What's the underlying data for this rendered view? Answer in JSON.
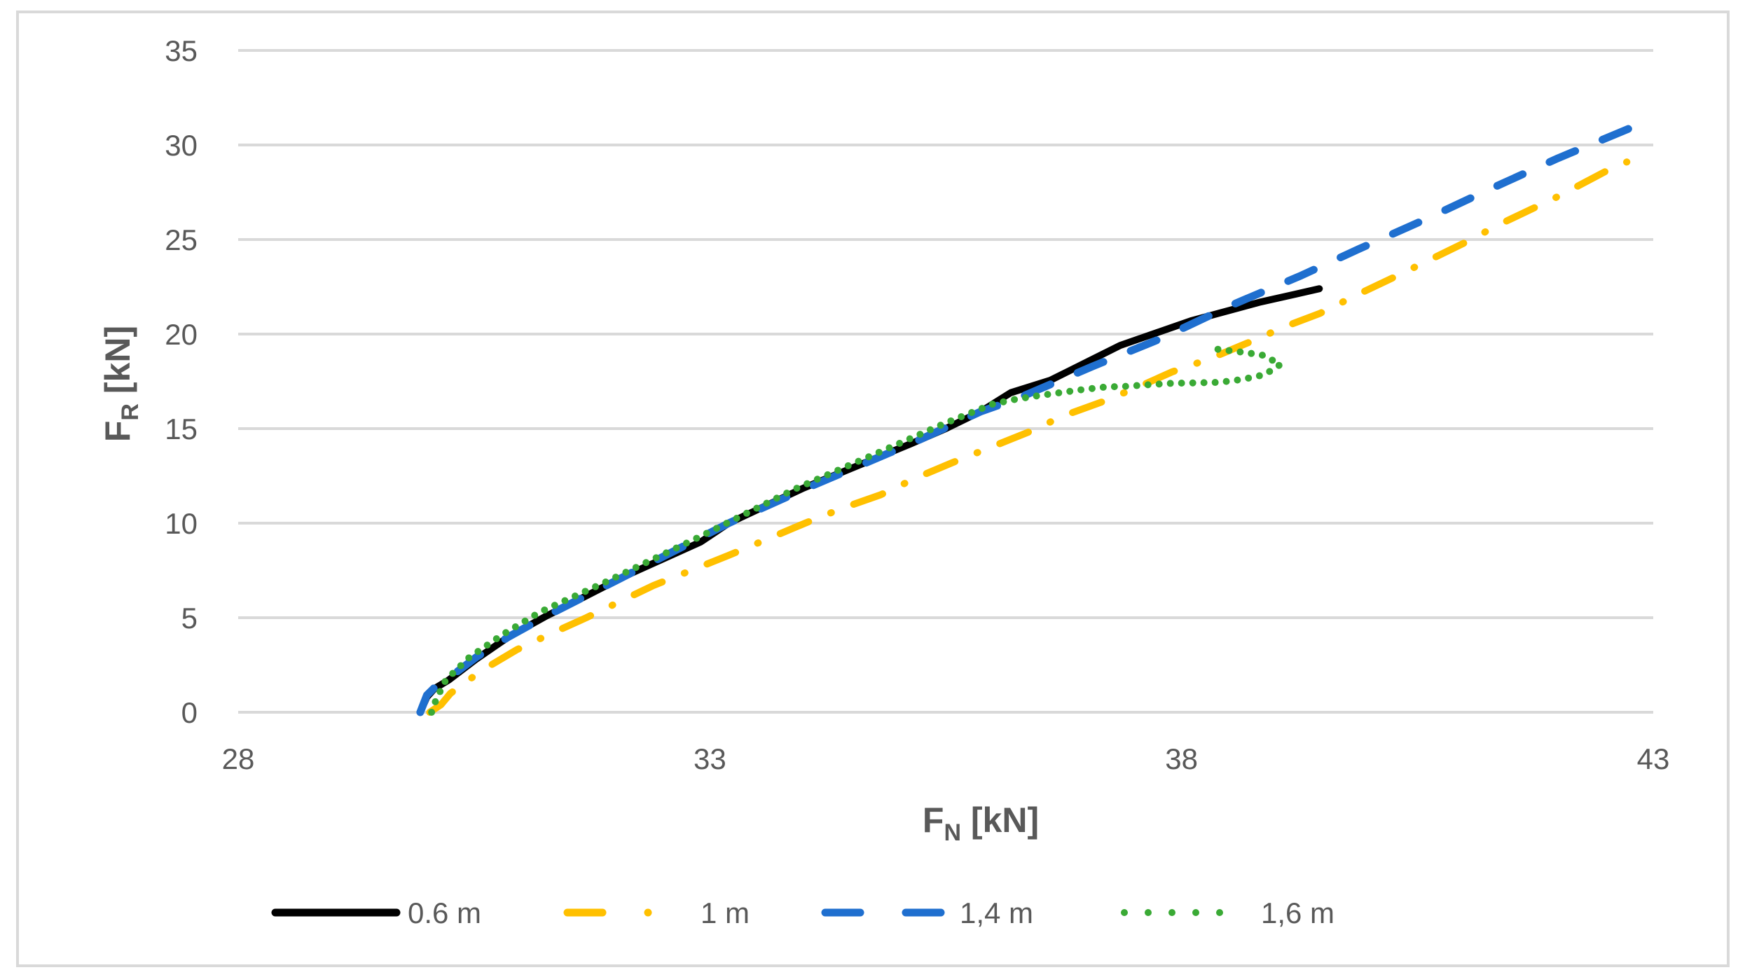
{
  "chart_data": {
    "type": "line",
    "title": "",
    "xlabel": "F_N [kN]",
    "xlabel_main": "F",
    "xlabel_sub": "N",
    "xlabel_unit": " [kN]",
    "ylabel": "F_R [kN]",
    "ylabel_main": "F",
    "ylabel_sub": "R",
    "ylabel_unit": " [kN]",
    "xlim": [
      28,
      43
    ],
    "ylim": [
      0,
      35
    ],
    "x_ticks": [
      28,
      33,
      38,
      43
    ],
    "y_ticks": [
      0,
      5,
      10,
      15,
      20,
      25,
      30,
      35
    ],
    "grid": {
      "horizontal": true,
      "vertical": false,
      "color": "#d9d9d9"
    },
    "legend_position": "bottom",
    "series": [
      {
        "name": "0.6 m",
        "color": "#000000",
        "style": "solid",
        "points": [
          [
            29.93,
            0
          ],
          [
            30.0,
            0.8
          ],
          [
            30.08,
            1.25
          ],
          [
            30.23,
            1.7
          ],
          [
            30.52,
            2.8
          ],
          [
            30.87,
            4.0
          ],
          [
            31.27,
            5.1
          ],
          [
            31.51,
            5.7
          ],
          [
            32.1,
            7.2
          ],
          [
            32.9,
            9.0
          ],
          [
            33.2,
            10.0
          ],
          [
            33.99,
            11.85
          ],
          [
            35.13,
            14.2
          ],
          [
            35.5,
            15.0
          ],
          [
            35.87,
            15.9
          ],
          [
            36.19,
            16.9
          ],
          [
            36.61,
            17.56
          ],
          [
            37.35,
            19.4
          ],
          [
            38.1,
            20.7
          ],
          [
            38.84,
            21.7
          ],
          [
            39.2,
            22.1
          ],
          [
            39.46,
            22.4
          ]
        ]
      },
      {
        "name": "1 m",
        "color": "#ffc000",
        "style": "dash-dot",
        "points": [
          [
            30.03,
            0
          ],
          [
            30.15,
            0.4
          ],
          [
            30.25,
            1.0
          ],
          [
            30.58,
            2.2
          ],
          [
            30.95,
            3.3
          ],
          [
            31.29,
            4.1
          ],
          [
            31.69,
            5.0
          ],
          [
            32.4,
            6.7
          ],
          [
            33.2,
            8.3
          ],
          [
            34.01,
            10.0
          ],
          [
            34.41,
            10.8
          ],
          [
            34.81,
            11.5
          ],
          [
            35.19,
            12.4
          ],
          [
            35.57,
            13.2
          ],
          [
            35.97,
            14.0
          ],
          [
            36.37,
            14.8
          ],
          [
            36.76,
            15.7
          ],
          [
            37.15,
            16.4
          ],
          [
            37.54,
            17.2
          ],
          [
            37.9,
            18.0
          ],
          [
            38.3,
            18.7
          ],
          [
            38.71,
            19.55
          ],
          [
            39.1,
            20.4
          ],
          [
            39.47,
            21.1
          ],
          [
            39.87,
            22.1
          ],
          [
            40.25,
            23.0
          ],
          [
            40.99,
            24.8
          ],
          [
            41.37,
            25.8
          ],
          [
            42.0,
            27.3
          ],
          [
            42.57,
            28.8
          ],
          [
            42.72,
            29.1
          ]
        ]
      },
      {
        "name": "1,4 m",
        "color": "#1f6fcf",
        "style": "dash",
        "points": [
          [
            29.93,
            0
          ],
          [
            30.0,
            0.9
          ],
          [
            30.08,
            1.3
          ],
          [
            30.23,
            1.8
          ],
          [
            30.52,
            2.9
          ],
          [
            30.87,
            4.0
          ],
          [
            31.27,
            5.1
          ],
          [
            32.1,
            7.2
          ],
          [
            33.2,
            10.0
          ],
          [
            34.0,
            11.8
          ],
          [
            35.13,
            14.2
          ],
          [
            35.87,
            15.9
          ],
          [
            36.24,
            16.55
          ],
          [
            37.06,
            18.3
          ],
          [
            37.8,
            19.8
          ],
          [
            38.54,
            21.55
          ],
          [
            39.27,
            23.1
          ],
          [
            39.88,
            24.5
          ],
          [
            40.6,
            26.1
          ],
          [
            41.24,
            27.6
          ],
          [
            41.99,
            29.3
          ],
          [
            43.0,
            31.4
          ]
        ]
      },
      {
        "name": "1,6 m",
        "color": "#3aaa35",
        "style": "dot",
        "points": [
          [
            30.05,
            0
          ],
          [
            30.1,
            0.7
          ],
          [
            30.2,
            1.7
          ],
          [
            30.45,
            2.9
          ],
          [
            30.8,
            4.1
          ],
          [
            31.2,
            5.3
          ],
          [
            31.9,
            6.9
          ],
          [
            32.9,
            9.3
          ],
          [
            33.9,
            11.8
          ],
          [
            35.0,
            14.2
          ],
          [
            35.5,
            15.3
          ],
          [
            36.0,
            16.3
          ],
          [
            36.24,
            16.55
          ],
          [
            36.48,
            16.74
          ],
          [
            36.71,
            16.9
          ],
          [
            36.96,
            17.07
          ],
          [
            37.19,
            17.2
          ],
          [
            37.43,
            17.24
          ],
          [
            37.67,
            17.33
          ],
          [
            37.91,
            17.4
          ],
          [
            38.13,
            17.42
          ],
          [
            38.4,
            17.45
          ],
          [
            38.64,
            17.6
          ],
          [
            38.88,
            17.85
          ],
          [
            39.05,
            18.4
          ],
          [
            38.85,
            18.9
          ],
          [
            38.6,
            19.07
          ],
          [
            38.38,
            19.2
          ]
        ]
      }
    ]
  },
  "legend": {
    "items": [
      {
        "label": "0.6 m"
      },
      {
        "label": "1 m"
      },
      {
        "label": "1,4 m"
      },
      {
        "label": "1,6 m"
      }
    ]
  }
}
